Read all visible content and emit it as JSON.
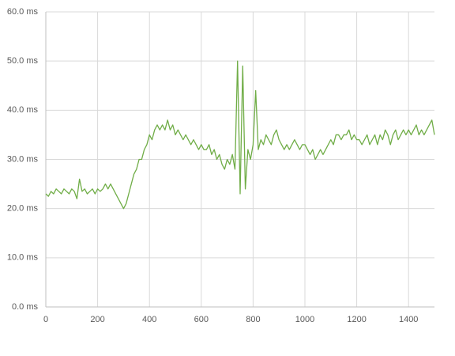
{
  "chart_data": {
    "type": "line",
    "color": "#70ad47",
    "grid": true,
    "xlim": [
      0,
      1500
    ],
    "xticks": [
      0,
      200,
      400,
      600,
      800,
      1000,
      1200,
      1400
    ],
    "ylim": [
      0,
      60
    ],
    "yticks": [
      {
        "value": 0,
        "label": "0.0 ms"
      },
      {
        "value": 10,
        "label": "10.0 ms"
      },
      {
        "value": 20,
        "label": "20.0 ms"
      },
      {
        "value": 30,
        "label": "30.0 ms"
      },
      {
        "value": 40,
        "label": "40.0 ms"
      },
      {
        "value": 50,
        "label": "50.0 ms"
      },
      {
        "value": 60,
        "label": "60.0 ms"
      }
    ],
    "x": [
      0,
      10,
      20,
      30,
      40,
      50,
      60,
      70,
      80,
      90,
      100,
      110,
      120,
      130,
      140,
      150,
      160,
      170,
      180,
      190,
      200,
      210,
      220,
      230,
      240,
      250,
      260,
      270,
      280,
      290,
      300,
      310,
      320,
      330,
      340,
      350,
      360,
      370,
      380,
      390,
      400,
      410,
      420,
      430,
      440,
      450,
      460,
      470,
      480,
      490,
      500,
      510,
      520,
      530,
      540,
      550,
      560,
      570,
      580,
      590,
      600,
      610,
      620,
      630,
      640,
      650,
      660,
      670,
      680,
      690,
      700,
      710,
      720,
      730,
      740,
      750,
      760,
      770,
      780,
      790,
      800,
      810,
      820,
      830,
      840,
      850,
      860,
      870,
      880,
      890,
      900,
      910,
      920,
      930,
      940,
      950,
      960,
      970,
      980,
      990,
      1000,
      1010,
      1020,
      1030,
      1040,
      1050,
      1060,
      1070,
      1080,
      1090,
      1100,
      1110,
      1120,
      1130,
      1140,
      1150,
      1160,
      1170,
      1180,
      1190,
      1200,
      1210,
      1220,
      1230,
      1240,
      1250,
      1260,
      1270,
      1280,
      1290,
      1300,
      1310,
      1320,
      1330,
      1340,
      1350,
      1360,
      1370,
      1380,
      1390,
      1400,
      1410,
      1420,
      1430,
      1440,
      1450,
      1460,
      1470,
      1480,
      1490,
      1500
    ],
    "values": [
      23,
      22.5,
      23.5,
      23,
      24,
      23.5,
      23,
      24,
      23.5,
      23,
      24,
      23.5,
      22,
      26,
      23.5,
      24,
      23,
      23.5,
      24,
      23,
      24,
      23.5,
      24,
      25,
      24,
      25,
      24,
      23,
      22,
      21,
      20,
      21,
      23,
      25,
      27,
      28,
      30,
      30,
      32,
      33,
      35,
      34,
      36,
      37,
      36,
      37,
      36,
      38,
      36,
      37,
      35,
      36,
      35,
      34,
      35,
      34,
      33,
      34,
      33,
      32,
      33,
      32,
      32,
      33,
      31,
      32,
      30,
      31,
      29,
      28,
      30,
      29,
      31,
      28,
      50,
      23,
      49,
      24,
      32,
      30,
      33,
      44,
      32,
      34,
      33,
      35,
      34,
      33,
      35,
      36,
      34,
      33,
      32,
      33,
      32,
      33,
      34,
      33,
      32,
      33,
      33,
      32,
      31,
      32,
      30,
      31,
      32,
      31,
      32,
      33,
      34,
      33,
      35,
      35,
      34,
      35,
      35,
      36,
      34,
      35,
      34,
      34,
      33,
      34,
      35,
      33,
      34,
      35,
      33,
      35,
      34,
      36,
      35,
      33,
      35,
      36,
      34,
      35,
      36,
      35,
      36,
      35,
      36,
      37,
      35,
      36,
      35,
      36,
      37,
      38,
      35
    ]
  }
}
